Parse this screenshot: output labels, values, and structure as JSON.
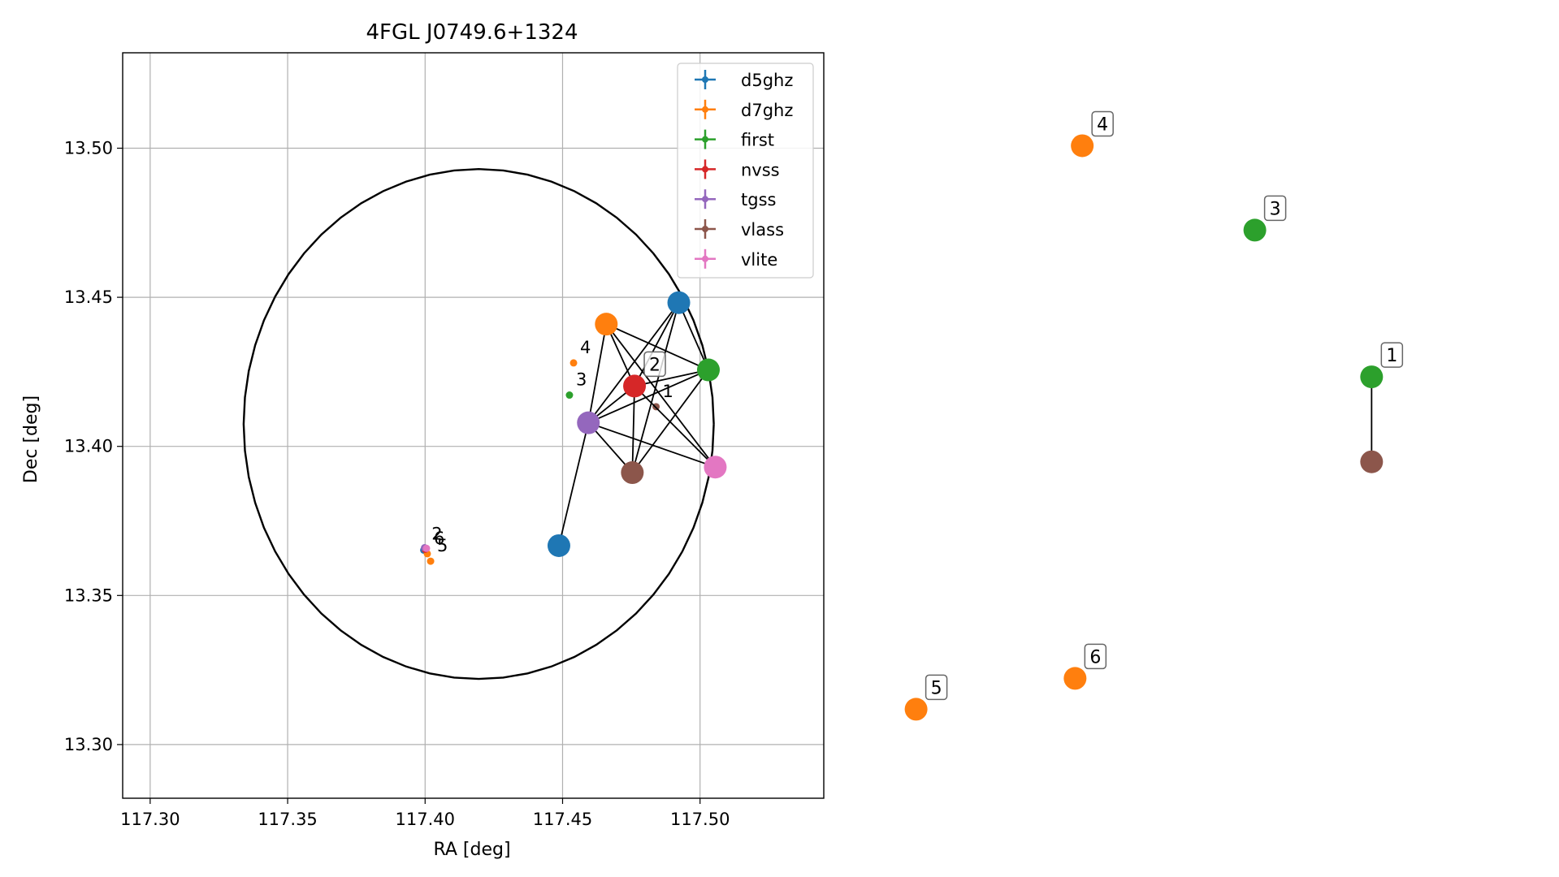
{
  "chart_data": [
    {
      "type": "scatter",
      "title": "4FGL J0749.6+1324",
      "xlabel": "RA [deg]",
      "ylabel": "Dec [deg]",
      "xlim": [
        117.29,
        117.545
      ],
      "ylim": [
        13.282,
        13.532
      ],
      "xticks": [
        117.3,
        117.35,
        117.4,
        117.45,
        117.5
      ],
      "xtick_labels": [
        "117.30",
        "117.35",
        "117.40",
        "117.45",
        "117.50"
      ],
      "yticks": [
        13.3,
        13.35,
        13.4,
        13.45,
        13.5
      ],
      "ytick_labels": [
        "13.30",
        "13.35",
        "13.40",
        "13.45",
        "13.50"
      ],
      "grid": true,
      "legend_position": "top-right",
      "series": [
        {
          "name": "d5ghz",
          "color": "#1f77b4",
          "points": [
            {
              "x": 117.3995,
              "y": 13.3652
            }
          ]
        },
        {
          "name": "d7ghz",
          "color": "#ff7f0e",
          "points": [
            {
              "x": 117.454,
              "y": 13.428
            },
            {
              "x": 117.402,
              "y": 13.3615
            },
            {
              "x": 117.4008,
              "y": 13.364
            }
          ]
        },
        {
          "name": "first",
          "color": "#2ca02c",
          "points": [
            {
              "x": 117.4525,
              "y": 13.4172
            }
          ]
        },
        {
          "name": "nvss",
          "color": "#d62728",
          "points": [
            {
              "x": 117.4,
              "y": 13.3655
            }
          ]
        },
        {
          "name": "tgss",
          "color": "#9467bd",
          "points": [
            {
              "x": 117.3998,
              "y": 13.366
            }
          ]
        },
        {
          "name": "vlass",
          "color": "#8c564b",
          "points": [
            {
              "x": 117.484,
              "y": 13.4133
            }
          ]
        },
        {
          "name": "vlite",
          "color": "#e377c2",
          "points": [
            {
              "x": 117.4005,
              "y": 13.3658
            }
          ]
        }
      ],
      "annotations": [
        {
          "text": "1",
          "x": 117.484,
          "y": 13.4133
        },
        {
          "text": "2",
          "x": 117.4,
          "y": 13.3655
        },
        {
          "text": "3",
          "x": 117.4525,
          "y": 13.4172
        },
        {
          "text": "4",
          "x": 117.454,
          "y": 13.428
        },
        {
          "text": "5",
          "x": 117.402,
          "y": 13.3615
        },
        {
          "text": "6",
          "x": 117.4008,
          "y": 13.364
        }
      ],
      "circle": {
        "center_ra": 117.4195,
        "center_dec": 13.4075,
        "radius_deg": 0.0855
      }
    },
    {
      "type": "network",
      "nodes": [
        {
          "id": "a",
          "color": "#1f77b4",
          "x": 0.3585,
          "y": 0.6222
        },
        {
          "id": "b",
          "color": "#1f77b4",
          "x": 0.4354,
          "y": 0.3451
        },
        {
          "id": "c",
          "color": "#ff7f0e",
          "x": 0.3889,
          "y": 0.3696
        },
        {
          "id": "d",
          "color": "#2ca02c",
          "x": 0.4544,
          "y": 0.4218
        },
        {
          "id": "e",
          "color": "#d62728",
          "x": 0.407,
          "y": 0.4402
        },
        {
          "id": "f",
          "color": "#9467bd",
          "x": 0.3774,
          "y": 0.4821
        },
        {
          "id": "g",
          "color": "#8c564b",
          "x": 0.4056,
          "y": 0.5389
        },
        {
          "id": "h",
          "color": "#e377c2",
          "x": 0.4588,
          "y": 0.5326
        },
        {
          "id": "i",
          "color": "#ff7f0e",
          "x": 0.6942,
          "y": 0.1662
        },
        {
          "id": "j",
          "color": "#2ca02c",
          "x": 0.8049,
          "y": 0.2624
        },
        {
          "id": "k",
          "color": "#2ca02c",
          "x": 0.8798,
          "y": 0.4297
        },
        {
          "id": "l",
          "color": "#8c564b",
          "x": 0.8798,
          "y": 0.5266
        },
        {
          "id": "m",
          "color": "#ff7f0e",
          "x": 0.5876,
          "y": 0.8087
        },
        {
          "id": "n",
          "color": "#ff7f0e",
          "x": 0.6896,
          "y": 0.7735
        }
      ],
      "edges": [
        [
          "a",
          "f"
        ],
        [
          "b",
          "e"
        ],
        [
          "b",
          "f"
        ],
        [
          "b",
          "g"
        ],
        [
          "b",
          "d"
        ],
        [
          "c",
          "f"
        ],
        [
          "c",
          "d"
        ],
        [
          "c",
          "e"
        ],
        [
          "c",
          "h"
        ],
        [
          "d",
          "e"
        ],
        [
          "d",
          "f"
        ],
        [
          "d",
          "g"
        ],
        [
          "e",
          "f"
        ],
        [
          "e",
          "g"
        ],
        [
          "e",
          "h"
        ],
        [
          "f",
          "g"
        ],
        [
          "f",
          "h"
        ],
        [
          "k",
          "l"
        ]
      ],
      "labels": [
        {
          "text": "4",
          "node": "i"
        },
        {
          "text": "3",
          "node": "j"
        },
        {
          "text": "2",
          "node": "e"
        },
        {
          "text": "1",
          "node": "k"
        },
        {
          "text": "6",
          "node": "n"
        },
        {
          "text": "5",
          "node": "m"
        }
      ]
    }
  ]
}
